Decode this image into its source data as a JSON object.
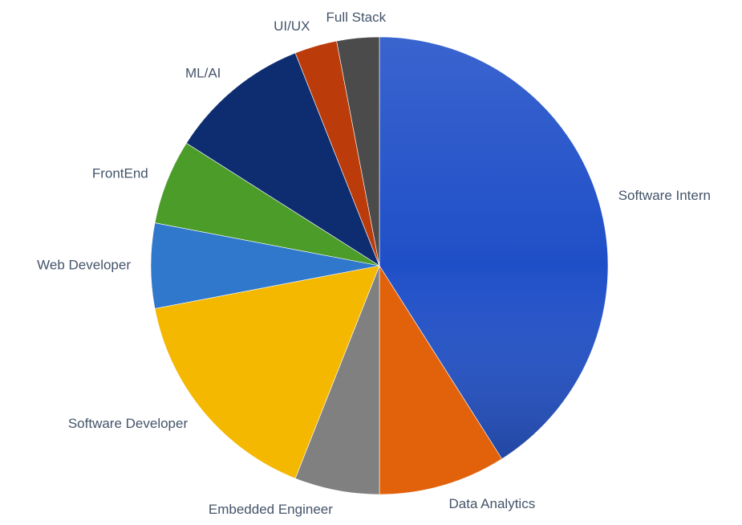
{
  "chart_data": {
    "type": "pie",
    "categories": [
      "Software Intern",
      "Data Analytics",
      "Embedded Engineer",
      "Software Developer",
      "Web Developer",
      "FrontEnd",
      "ML/AI",
      "UI/UX",
      "Full Stack"
    ],
    "values": [
      41,
      9,
      6,
      16,
      6,
      6,
      10,
      3,
      3
    ],
    "colors": [
      "#1f4fc8",
      "#e2620c",
      "#808080",
      "#f4b800",
      "#2f78cc",
      "#4c9c2a",
      "#0e2c70",
      "#bb3c0a",
      "#4b4b4b"
    ]
  }
}
